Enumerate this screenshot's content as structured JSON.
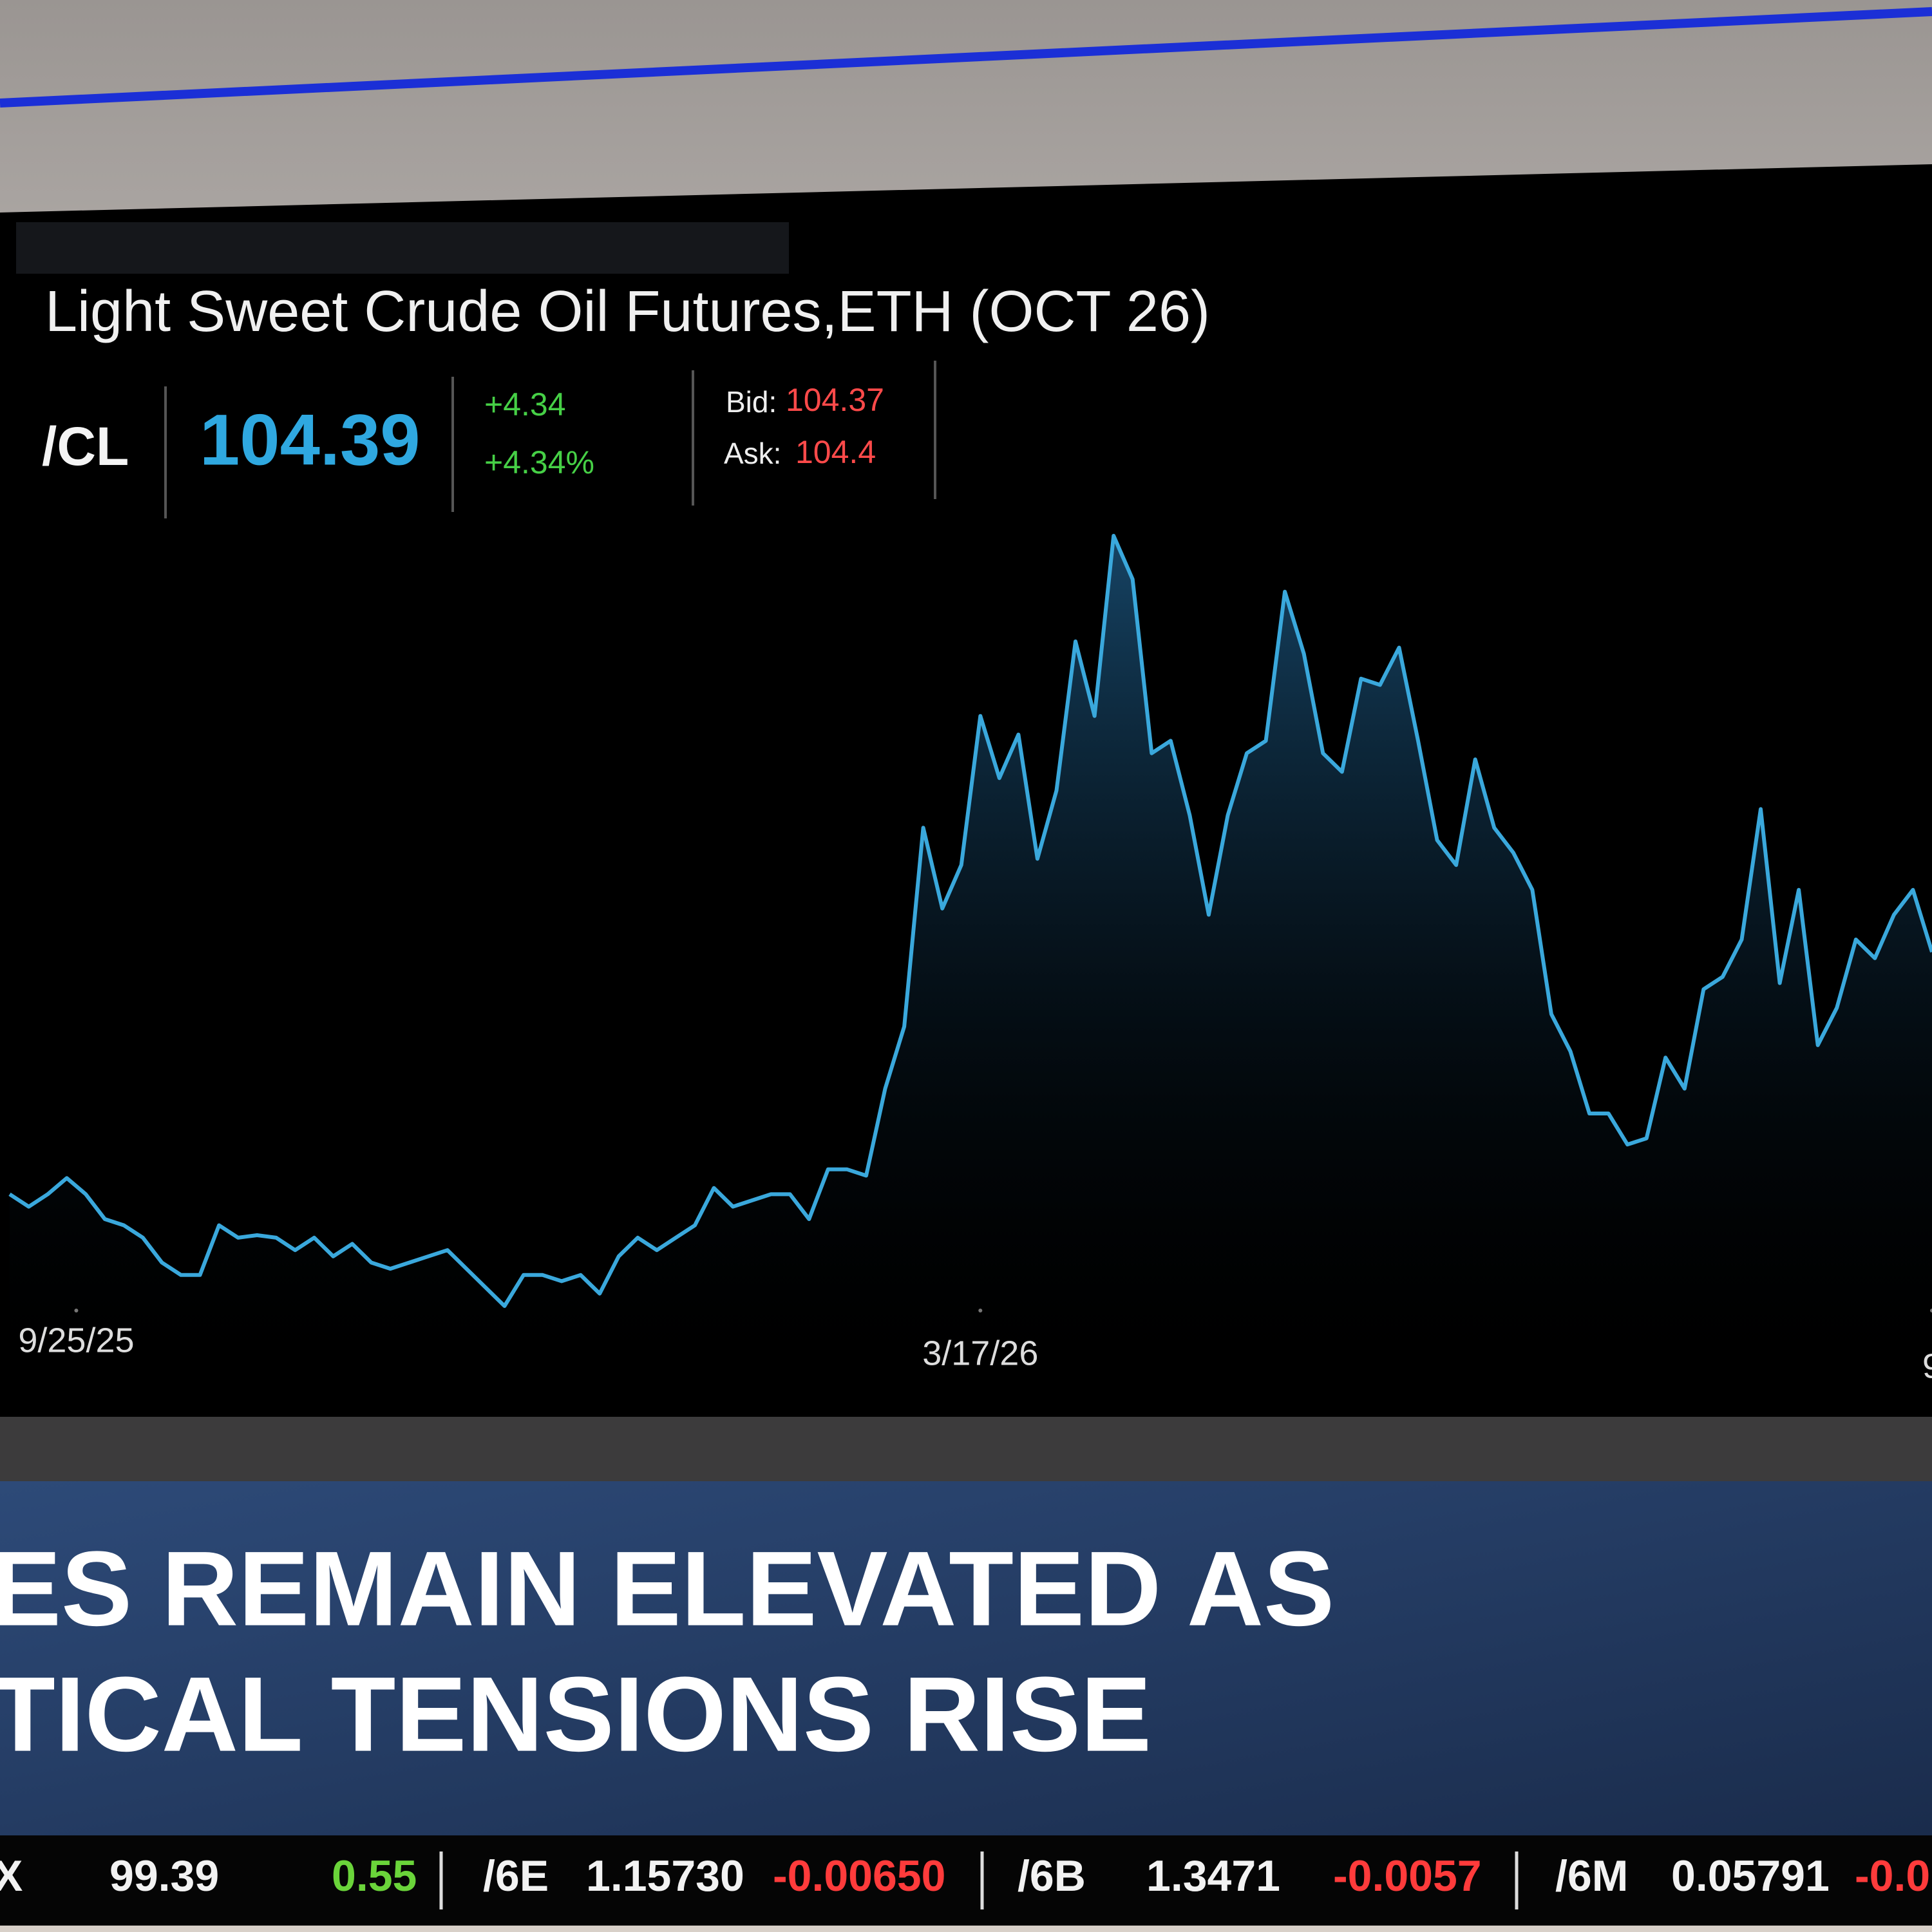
{
  "header": {
    "title": "Light Sweet Crude Oil Futures,ETH (OCT 26)",
    "symbol": "/CL",
    "last": "104.39",
    "change": "+4.34",
    "change_percent": "+4.34%",
    "bid_label": "Bid:",
    "bid": "104.37",
    "ask_label": "Ask:",
    "ask": "104.4"
  },
  "chart_data": {
    "type": "line",
    "color": "#3aa8dc",
    "fill": true,
    "values": [
      62,
      60,
      62,
      64.6,
      62,
      58,
      57,
      55,
      51,
      49,
      49,
      57,
      55,
      55.4,
      55,
      53,
      55,
      52,
      54,
      51,
      50,
      51,
      52,
      53,
      50,
      47,
      44,
      49,
      49,
      48,
      49,
      46,
      52,
      55,
      53,
      55,
      57,
      63,
      60,
      61,
      62,
      62,
      58,
      66,
      66,
      65,
      79,
      89,
      121,
      108,
      115,
      139,
      129,
      136,
      116,
      127,
      151,
      139,
      168,
      161,
      133,
      135,
      123,
      107,
      123,
      133,
      135,
      159,
      149,
      133,
      130,
      145,
      144,
      150,
      135,
      119,
      115,
      132,
      121,
      117,
      111,
      91,
      85,
      75,
      75,
      70,
      71,
      84,
      79,
      95,
      97,
      103,
      124,
      96,
      111,
      86,
      92,
      103,
      100,
      107,
      111,
      101
    ],
    "xticks": [
      {
        "value": 3.5,
        "label": "9/25/25"
      },
      {
        "value": 51,
        "label": "3/17/26"
      },
      {
        "value": 101,
        "label": "9"
      }
    ]
  },
  "headline": {
    "lines": [
      "ES REMAIN ELEVATED AS",
      "TICAL TENSIONS RISE"
    ]
  },
  "ticker": {
    "items": [
      {
        "symbol": "X",
        "last": "99.39",
        "change": "0.55",
        "color": "#6ad43a"
      },
      {
        "symbol": "/6E",
        "last": "1.15730",
        "change": "-0.00650",
        "color": "#ff3b3b"
      },
      {
        "symbol": "/6B",
        "last": "1.3471",
        "change": "-0.0057",
        "color": "#ff3b3b"
      },
      {
        "symbol": "/6M",
        "last": "0.05791",
        "change": "-0.0",
        "color": "#ff3b3b"
      }
    ]
  }
}
